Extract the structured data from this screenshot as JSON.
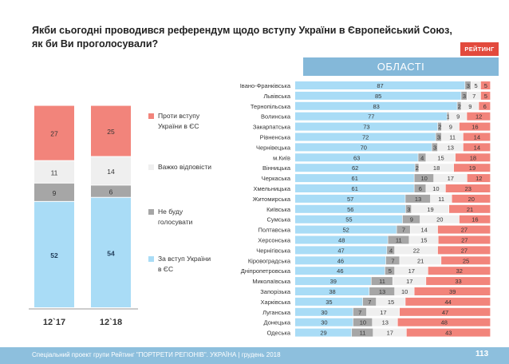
{
  "title": {
    "line1": "Якби сьогодні проводився референдум щодо вступу України в Європейський Союз,",
    "line2": "як би Ви проголосували?"
  },
  "brand": "РЕЙТИНГ",
  "region_header": "ОБЛАСТІ",
  "footer": {
    "text": "Спеціальний проект групи Рейтинг \"ПОРТРЕТИ РЕГІОНІВ\". УКРАЇНА | грудень 2018",
    "page": "113"
  },
  "colors": {
    "for": "#a9dcf6",
    "not_vote": "#a6a6a6",
    "hard": "#efefef",
    "against": "#f2847b"
  },
  "chart_data": [
    {
      "type": "bar",
      "stacked": true,
      "orientation": "vertical",
      "categories": [
        "12`17",
        "12`18"
      ],
      "series": [
        {
          "name": "За вступ України в ЄС",
          "values": [
            52,
            54
          ]
        },
        {
          "name": "Не буду голосувати",
          "values": [
            9,
            6
          ]
        },
        {
          "name": "Важко відповісти",
          "values": [
            11,
            14
          ]
        },
        {
          "name": "Проти вступу України в ЄС",
          "values": [
            27,
            25
          ]
        }
      ],
      "legend_position": "right"
    },
    {
      "type": "bar",
      "stacked": true,
      "orientation": "horizontal",
      "categories": [
        "Івано-Франківська",
        "Львівська",
        "Тернопільська",
        "Волинська",
        "Закарпатська",
        "Рівненська",
        "Чернівецька",
        "м.Київ",
        "Вінницька",
        "Черкаська",
        "Хмельницька",
        "Житомирська",
        "Київська",
        "Сумська",
        "Полтавська",
        "Херсонська",
        "Чернігівська",
        "Кіровоградська",
        "Дніпропетровська",
        "Миколаївська",
        "Запорізька",
        "Харківська",
        "Луганська",
        "Донецька",
        "Одеська"
      ],
      "series": [
        {
          "name": "За вступ України в ЄС",
          "values": [
            87,
            85,
            83,
            77,
            73,
            72,
            70,
            63,
            62,
            61,
            61,
            57,
            56,
            55,
            52,
            48,
            47,
            46,
            46,
            39,
            38,
            35,
            30,
            30,
            29
          ]
        },
        {
          "name": "Не буду голосувати",
          "values": [
            3,
            3,
            2,
            1,
            2,
            3,
            3,
            4,
            2,
            10,
            6,
            13,
            3,
            9,
            7,
            11,
            4,
            7,
            5,
            11,
            13,
            7,
            7,
            10,
            11
          ]
        },
        {
          "name": "Важко відповісти",
          "values": [
            5,
            7,
            9,
            9,
            9,
            11,
            13,
            15,
            18,
            17,
            10,
            11,
            19,
            20,
            14,
            15,
            22,
            21,
            17,
            17,
            10,
            15,
            17,
            13,
            17
          ]
        },
        {
          "name": "Проти вступу України в ЄС",
          "values": [
            5,
            5,
            6,
            12,
            16,
            14,
            14,
            18,
            19,
            12,
            23,
            20,
            21,
            16,
            27,
            27,
            27,
            25,
            32,
            33,
            39,
            44,
            47,
            48,
            43
          ]
        }
      ]
    }
  ]
}
